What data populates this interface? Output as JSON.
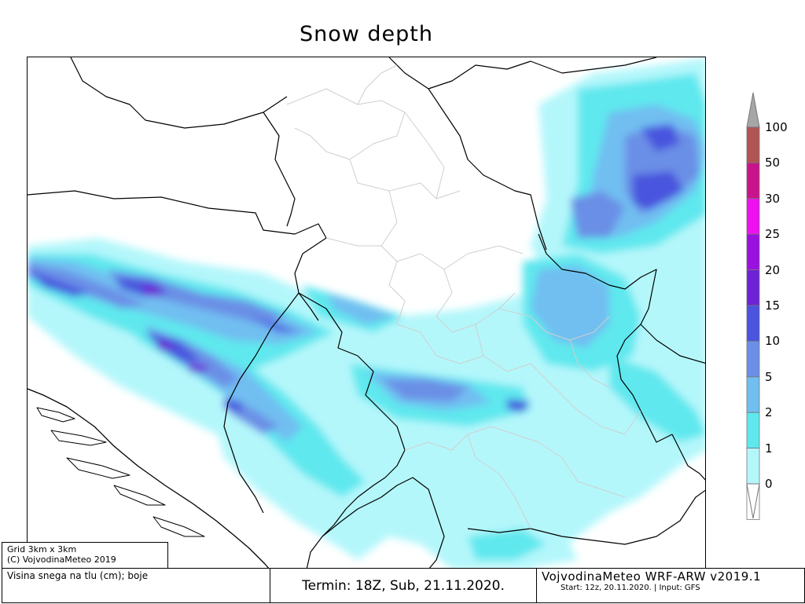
{
  "title": "Snow depth",
  "legend": {
    "labels": [
      "100",
      "50",
      "30",
      "25",
      "20",
      "15",
      "10",
      "5",
      "2",
      "1",
      "0"
    ],
    "colors": [
      "#b05454",
      "#c8148a",
      "#ee10ee",
      "#9a10de",
      "#6e22d6",
      "#4a54de",
      "#6b8fe6",
      "#71bef1",
      "#5ee8ee",
      "#b4f7fb",
      "#ffffff"
    ],
    "over_color": "#a6a6a6"
  },
  "footer": {
    "grid_line1": "Grid 3km x 3km",
    "grid_line2": "(C) VojvodinaMeteo 2019",
    "description": "Visina snega na tlu (cm); boje",
    "termin": "Termin: 18Z, Sub, 21.11.2020.",
    "brand": "VojvodinaMeteo WRF-ARW v2019.1",
    "start": "Start: 12z, 20.11.2020. | Input: GFS"
  },
  "map": {
    "color_light": "#b4f7fb",
    "color_cyan": "#5ee8ee",
    "color_lblue": "#71bef1",
    "color_mblue": "#6b8fe6",
    "color_dblue": "#4a54de",
    "color_violet": "#6e22d6",
    "color_purple": "#9a10de"
  }
}
